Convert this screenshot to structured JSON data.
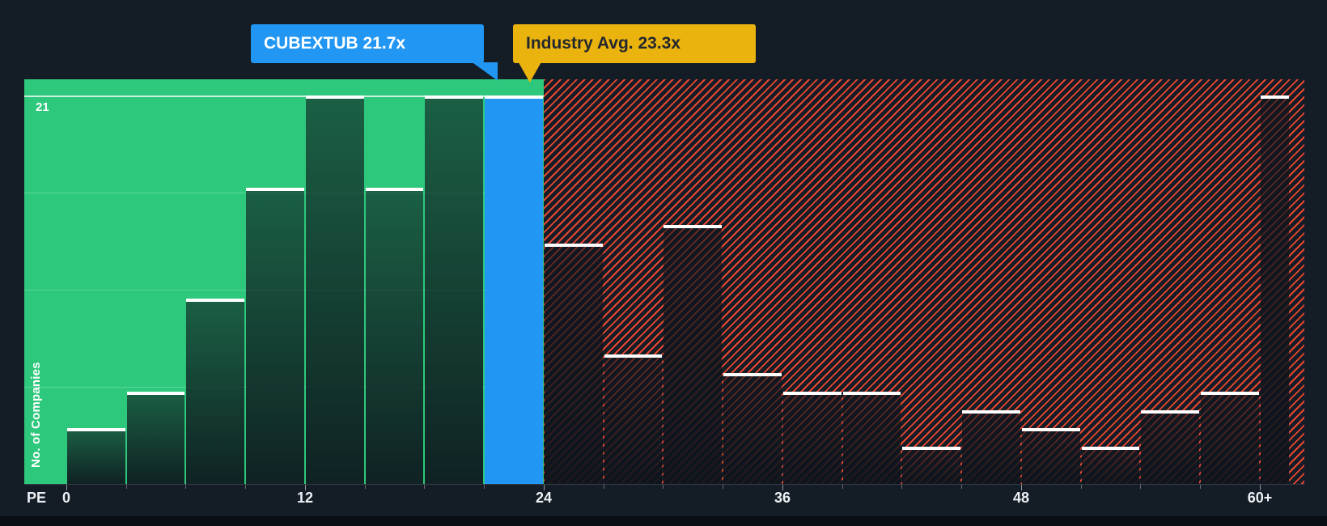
{
  "colors": {
    "background": "#141C26",
    "region_below_avg": "#2EC87C",
    "company_blue": "#2196F3",
    "industry_yellow": "#EAB30E",
    "hatch_red": "#E9472F",
    "bar_cap_white": "#FFFFFF"
  },
  "callouts": {
    "company": {
      "label": "CUBEXTUB 21.7x",
      "name": "CUBEXTUB",
      "value": 21.7
    },
    "industry": {
      "label": "Industry Avg. 23.3x",
      "value": 23.3
    }
  },
  "axes": {
    "x_label": "PE",
    "x_ticks": [
      "0",
      "12",
      "24",
      "36",
      "48",
      "60+"
    ],
    "y_label": "No. of Companies",
    "y_max_label": "21"
  },
  "chart_data": {
    "type": "bar",
    "title": "",
    "xlabel": "PE",
    "ylabel": "No. of Companies",
    "ylim": [
      0,
      21
    ],
    "bin_width": 3,
    "bin_starts": [
      0,
      3,
      6,
      9,
      12,
      15,
      18,
      21,
      24,
      27,
      30,
      33,
      36,
      39,
      42,
      45,
      48,
      51,
      54,
      57,
      60
    ],
    "last_bin_label": "60+",
    "values": [
      3,
      5,
      10,
      16,
      21,
      16,
      21,
      21,
      13,
      7,
      14,
      6,
      5,
      5,
      2,
      4,
      3,
      2,
      4,
      5,
      21
    ],
    "x_tick_values": [
      0,
      12,
      24,
      36,
      48,
      60
    ],
    "company": {
      "name": "CUBEXTUB",
      "pe": 21.7,
      "bin_index": 7
    },
    "industry_avg_pe": 23.3,
    "regions": {
      "below_avg": {
        "range": [
          0,
          24
        ],
        "style": "solid-green"
      },
      "above_avg": {
        "range": [
          24,
          63
        ],
        "style": "red-hatched"
      }
    },
    "gridline_values": [
      5.25,
      10.5,
      15.75,
      21
    ],
    "legend": "off",
    "grid": "faint-horizontal"
  }
}
